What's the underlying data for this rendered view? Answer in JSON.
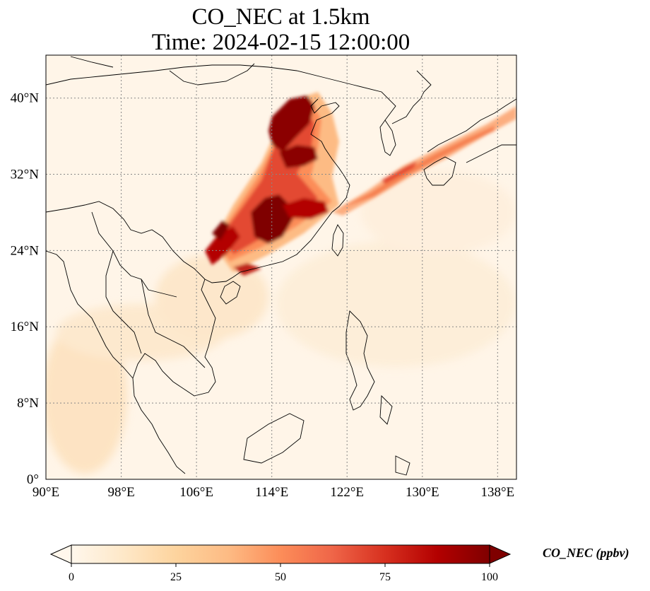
{
  "title": {
    "line1": "CO_NEC at 1.5km",
    "line2": "Time: 2024-02-15 12:00:00"
  },
  "map": {
    "type": "map",
    "variable": "CO_NEC",
    "level": "1.5km",
    "time": "2024-02-15 12:00:00",
    "projection": "PlateCarree",
    "lon_range": [
      90,
      140
    ],
    "lat_range": [
      0,
      44.5
    ],
    "gridlines": true,
    "gridline_style": "dotted",
    "coastlines": true,
    "borders": true,
    "x_ticks": [
      {
        "value": 90,
        "label": "90°E"
      },
      {
        "value": 98,
        "label": "98°E"
      },
      {
        "value": 106,
        "label": "106°E"
      },
      {
        "value": 114,
        "label": "114°E"
      },
      {
        "value": 122,
        "label": "122°E"
      },
      {
        "value": 130,
        "label": "130°E"
      },
      {
        "value": 138,
        "label": "138°E"
      }
    ],
    "y_ticks": [
      {
        "value": 0,
        "label": "0°"
      },
      {
        "value": 8,
        "label": "8°N"
      },
      {
        "value": 16,
        "label": "16°N"
      },
      {
        "value": 24,
        "label": "24°N"
      },
      {
        "value": 32,
        "label": "32°N"
      },
      {
        "value": 40,
        "label": "40°N"
      }
    ]
  },
  "colorbar": {
    "label": "CO_NEC (ppbv)",
    "colormap": "OrRd",
    "range": [
      0,
      100
    ],
    "extend": "both",
    "ticks": [
      {
        "value": 0,
        "label": "0"
      },
      {
        "value": 25,
        "label": "25"
      },
      {
        "value": 50,
        "label": "50"
      },
      {
        "value": 75,
        "label": "75"
      },
      {
        "value": 100,
        "label": "100"
      }
    ],
    "colors": [
      "#fff7ec",
      "#fdd49e",
      "#fc8d59",
      "#d7301f",
      "#7f0000"
    ]
  }
}
